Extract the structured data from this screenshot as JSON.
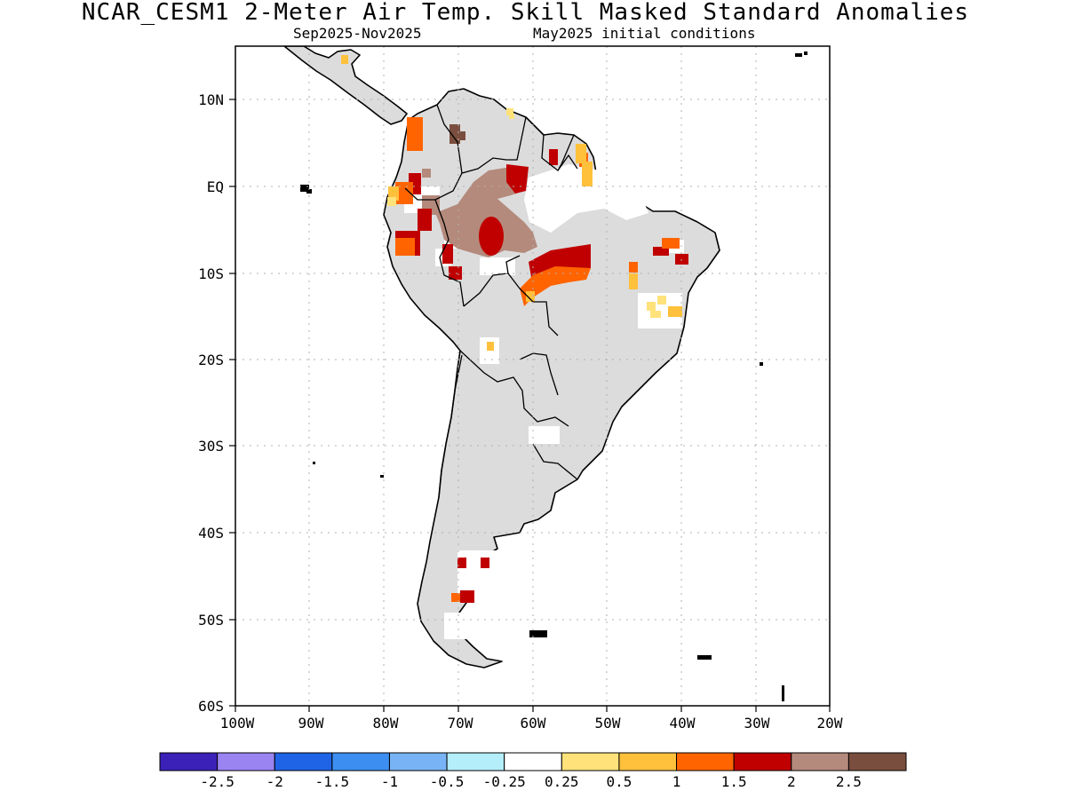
{
  "header": {
    "title": "NCAR_CESM1 2-Meter Air Temp. Skill Masked Standard Anomalies",
    "season": "Sep2025-Nov2025",
    "init": "May2025 initial conditions"
  },
  "map": {
    "lat_labels": [
      "10N",
      "EQ",
      "10S",
      "20S",
      "30S",
      "40S",
      "50S",
      "60S"
    ],
    "lon_labels": [
      "100W",
      "90W",
      "80W",
      "70W",
      "60W",
      "50W",
      "40W",
      "30W",
      "20W"
    ],
    "lat_range": [
      -60,
      15
    ],
    "lon_range": [
      -100,
      -20
    ],
    "colors": {
      "skill_masked_gray": "#dcdcdc",
      "coastline": "#000000",
      "gridline": "#b0b0b0"
    }
  },
  "colorbar": {
    "colors": [
      "#3b21b8",
      "#9a84f2",
      "#1f63e6",
      "#3c8ef0",
      "#78b4f5",
      "#b4eefa",
      "#ffffff",
      "#ffe27a",
      "#ffc13c",
      "#ff6400",
      "#c00000",
      "#b48a7c",
      "#7a4e3e"
    ],
    "labels": [
      "-2.5",
      "-2",
      "-1.5",
      "-1",
      "-0.5",
      "-0.25",
      "0.25",
      "0.5",
      "1",
      "1.5",
      "2",
      "2.5"
    ]
  }
}
